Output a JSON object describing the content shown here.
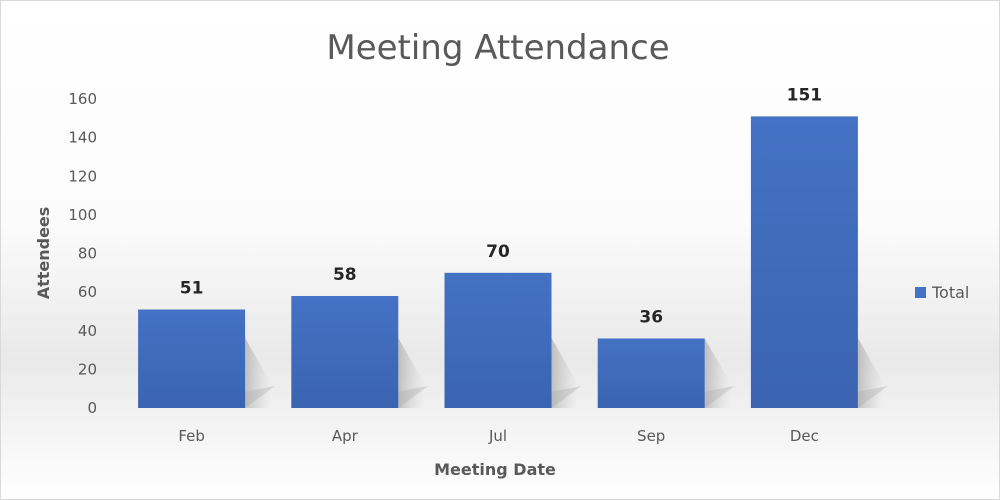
{
  "chart_data": {
    "type": "bar",
    "title": "Meeting Attendance",
    "xlabel": "Meeting Date",
    "ylabel": "Attendees",
    "categories": [
      "Feb",
      "Apr",
      "Jul",
      "Sep",
      "Dec"
    ],
    "series": [
      {
        "name": "Total",
        "values": [
          51,
          58,
          70,
          36,
          151
        ],
        "color": "#4472C4"
      }
    ],
    "y_ticks": [
      "0",
      "20",
      "40",
      "60",
      "80",
      "100",
      "120",
      "140",
      "160"
    ],
    "ylim": [
      0,
      160
    ],
    "grid": false,
    "legend_position": "right",
    "data_labels": true
  }
}
